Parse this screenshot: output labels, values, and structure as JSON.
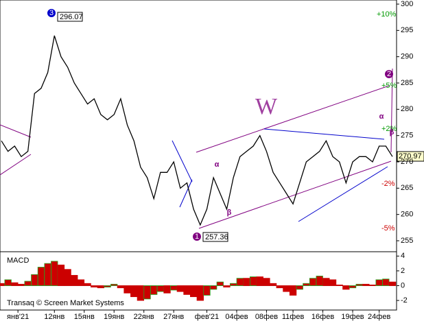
{
  "chart_data": [
    {
      "type": "line",
      "color": "#000000",
      "values": [
        274,
        272,
        273,
        271,
        272,
        283,
        284,
        287,
        294,
        290,
        288,
        285,
        283,
        281,
        282,
        279,
        278,
        279,
        282,
        277,
        274,
        269,
        267,
        263,
        268,
        268,
        270,
        265,
        266,
        261,
        258,
        261,
        267,
        264,
        261,
        267,
        271,
        272,
        273,
        275,
        272,
        268,
        266,
        264,
        262,
        266,
        270,
        271,
        272,
        274,
        271,
        270,
        266,
        270,
        271,
        271,
        270,
        273,
        273,
        271
      ],
      "xlim": [
        0,
        59
      ],
      "xticks": [
        {
          "value": 2.5,
          "label": "янв'21"
        },
        {
          "value": 8,
          "label": "12янв"
        },
        {
          "value": 12.5,
          "label": "15янв"
        },
        {
          "value": 17,
          "label": "19янв"
        },
        {
          "value": 21.5,
          "label": "22янв"
        },
        {
          "value": 26,
          "label": "27янв"
        },
        {
          "value": 31,
          "label": "фев'21"
        },
        {
          "value": 35.5,
          "label": "04фев"
        },
        {
          "value": 40,
          "label": "08фев"
        },
        {
          "value": 44,
          "label": "11фев"
        },
        {
          "value": 48.5,
          "label": "16фев"
        },
        {
          "value": 53,
          "label": "19фев"
        },
        {
          "value": 57,
          "label": "24фев"
        }
      ],
      "ylim": [
        255,
        300
      ],
      "yticks": [
        255,
        260,
        265,
        270,
        275,
        280,
        285,
        290,
        295,
        300
      ],
      "annotations": [
        "296.07",
        "257.36",
        "270.97",
        "3",
        "1",
        "2",
        "W",
        "α",
        "β",
        "α",
        "β",
        "+10%",
        "+5%",
        "+2%",
        "-2%",
        "-5%",
        "Transaq © Screen Market Systems"
      ]
    },
    {
      "type": "bar",
      "title": "MACD",
      "color": "#cc0000",
      "values": [
        0.3,
        0.8,
        0.4,
        0.2,
        0.6,
        1.5,
        2.5,
        3,
        3.3,
        2.8,
        2.2,
        1.4,
        0.8,
        0.3,
        -0.2,
        -0.3,
        -0.2,
        0.2,
        -0.3,
        -1,
        -1.5,
        -2,
        -1.8,
        -1.2,
        -0.8,
        -1,
        -0.6,
        -0.8,
        -1.2,
        -1.5,
        -2,
        -1.3,
        -0.5,
        0.5,
        -0.2,
        0.3,
        1,
        1,
        1.2,
        1.2,
        1,
        0.3,
        -0.3,
        -0.8,
        -1.3,
        -0.5,
        0.3,
        1,
        1.3,
        1,
        0.8,
        0.1,
        -0.5,
        -0.3,
        0.2,
        0.2,
        0.1,
        0.8,
        0.9,
        0.5
      ],
      "ylim": [
        -3.2,
        4.4
      ],
      "yticks": [
        -2,
        0,
        2,
        4
      ]
    }
  ]
}
